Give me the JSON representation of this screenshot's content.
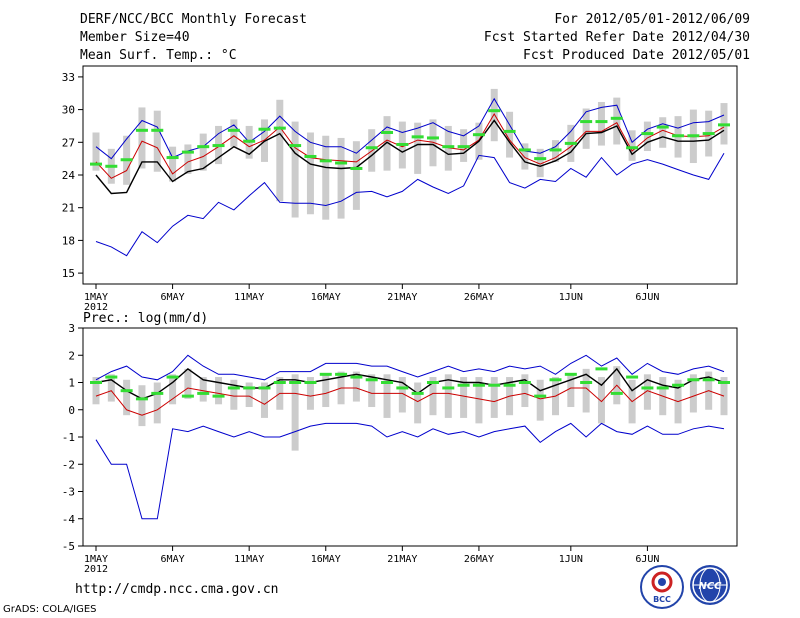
{
  "header": {
    "title": "DERF/NCC/BCC Monthly Forecast",
    "member_size": "Member Size=40",
    "variable": "Mean Surf. Temp.: °C",
    "period": "For 2012/05/01-2012/06/09",
    "started": "Fcst Started Refer Date 2012/04/30",
    "produced": "Fcst Produced Date 2012/05/01"
  },
  "footer": {
    "url": "http://cmdp.ncc.cma.gov.cn",
    "credit": "GrADS: COLA/IGES",
    "logo_bcc": "BCC",
    "logo_ncc": "NCC"
  },
  "colors": {
    "mean": "#000000",
    "median": "#cc0000",
    "envelope": "#0000cc",
    "box": "#cccccc",
    "mode": "#33dd33"
  },
  "chart_data": [
    {
      "type": "line",
      "title": "Mean Surf. Temp.: °C",
      "x_tick_labels": [
        "1MAY",
        "6MAY",
        "11MAY",
        "16MAY",
        "21MAY",
        "26MAY",
        "1JUN",
        "6JUN"
      ],
      "x_tick_days": [
        1,
        6,
        11,
        16,
        21,
        26,
        32,
        37
      ],
      "year_label": "2012",
      "ylim": [
        14,
        34
      ],
      "y_ticks": [
        15,
        18,
        21,
        24,
        27,
        30,
        33
      ],
      "series": [
        {
          "name": "max",
          "values": [
            26.6,
            25.5,
            27.3,
            29.0,
            28.4,
            25.6,
            26.2,
            26.6,
            27.8,
            28.6,
            27.0,
            28.0,
            29.4,
            28.0,
            27.0,
            26.6,
            26.6,
            26.0,
            27.2,
            28.4,
            27.9,
            28.3,
            28.8,
            28.0,
            27.6,
            28.5,
            31.0,
            28.6,
            26.2,
            26.0,
            26.6,
            28.0,
            29.8,
            30.2,
            30.4,
            27.0,
            28.2,
            28.7,
            28.3,
            28.8,
            28.9,
            29.5
          ]
        },
        {
          "name": "median",
          "values": [
            25.2,
            23.7,
            24.4,
            27.1,
            26.5,
            24.1,
            25.2,
            25.7,
            26.6,
            27.6,
            26.6,
            27.2,
            28.4,
            26.5,
            25.6,
            25.4,
            25.3,
            25.2,
            26.2,
            27.2,
            26.6,
            27.2,
            27.0,
            26.5,
            26.3,
            27.2,
            29.6,
            27.2,
            25.6,
            25.0,
            25.6,
            26.6,
            28.0,
            28.0,
            28.8,
            26.2,
            27.4,
            28.1,
            27.6,
            27.5,
            27.6,
            28.4
          ]
        },
        {
          "name": "mean",
          "values": [
            24.0,
            22.3,
            22.4,
            25.2,
            25.2,
            23.4,
            24.3,
            24.6,
            25.6,
            26.6,
            25.9,
            27.1,
            27.8,
            26.0,
            25.0,
            24.7,
            24.6,
            24.7,
            25.8,
            27.0,
            26.1,
            26.8,
            26.8,
            25.9,
            26.0,
            27.1,
            29.0,
            27.0,
            25.2,
            24.8,
            25.3,
            26.1,
            27.8,
            27.9,
            28.5,
            25.9,
            27.0,
            27.5,
            27.1,
            27.1,
            27.2,
            28.1
          ]
        },
        {
          "name": "min",
          "values": [
            17.9,
            17.4,
            16.6,
            18.8,
            17.8,
            19.3,
            20.3,
            20.0,
            21.5,
            20.8,
            22.1,
            23.3,
            21.5,
            21.4,
            21.4,
            21.2,
            21.6,
            22.4,
            22.5,
            22.0,
            22.5,
            23.6,
            22.9,
            22.3,
            23.0,
            25.8,
            25.6,
            23.3,
            22.8,
            23.6,
            23.4,
            24.6,
            23.8,
            25.6,
            24.0,
            25.0,
            25.4,
            25.0,
            24.5,
            24.0,
            23.6,
            26.0
          ]
        },
        {
          "name": "box_high",
          "values": [
            27.9,
            26.4,
            27.6,
            30.2,
            29.9,
            26.6,
            26.8,
            27.8,
            28.5,
            29.1,
            28.5,
            29.1,
            30.9,
            28.9,
            27.9,
            27.6,
            27.4,
            27.1,
            28.2,
            29.4,
            28.9,
            28.8,
            29.1,
            28.5,
            28.2,
            28.8,
            31.9,
            29.8,
            26.9,
            26.4,
            27.2,
            28.6,
            30.1,
            30.7,
            31.1,
            28.1,
            28.9,
            29.3,
            29.4,
            30.0,
            29.9,
            30.6
          ]
        },
        {
          "name": "box_low",
          "values": [
            24.4,
            23.2,
            23.1,
            24.6,
            24.3,
            23.4,
            24.1,
            24.4,
            25.0,
            26.6,
            25.5,
            25.2,
            21.6,
            20.1,
            20.4,
            19.9,
            20.0,
            20.8,
            24.3,
            24.4,
            24.6,
            24.1,
            24.8,
            24.4,
            25.2,
            25.4,
            27.1,
            25.6,
            24.5,
            23.8,
            25.2,
            25.2,
            26.4,
            26.7,
            26.8,
            25.3,
            26.2,
            26.5,
            25.6,
            25.1,
            25.7,
            26.8
          ]
        },
        {
          "name": "mode",
          "values": [
            25.0,
            24.8,
            25.4,
            28.1,
            28.1,
            25.6,
            26.1,
            26.6,
            26.7,
            28.1,
            27.1,
            28.2,
            28.3,
            26.7,
            25.7,
            25.3,
            25.1,
            24.6,
            26.5,
            27.9,
            26.8,
            27.5,
            27.4,
            26.6,
            26.6,
            27.7,
            29.9,
            28.0,
            26.3,
            25.5,
            26.3,
            26.9,
            28.9,
            28.9,
            29.2,
            26.5,
            27.8,
            28.4,
            27.6,
            27.6,
            27.8,
            28.6
          ]
        }
      ]
    },
    {
      "type": "line",
      "title": "Prec.: log(mm/d)",
      "x_tick_labels": [
        "1MAY",
        "6MAY",
        "11MAY",
        "16MAY",
        "21MAY",
        "26MAY",
        "1JUN",
        "6JUN"
      ],
      "x_tick_days": [
        1,
        6,
        11,
        16,
        21,
        26,
        32,
        37
      ],
      "year_label": "2012",
      "ylim": [
        -5,
        3
      ],
      "y_ticks": [
        -5,
        -4,
        -3,
        -2,
        -1,
        0,
        1,
        2,
        3
      ],
      "series": [
        {
          "name": "max",
          "values": [
            1.1,
            1.4,
            1.6,
            1.2,
            1.1,
            1.4,
            2.0,
            1.6,
            1.3,
            1.3,
            1.2,
            1.1,
            1.4,
            1.4,
            1.4,
            1.7,
            1.7,
            1.7,
            1.6,
            1.6,
            1.4,
            1.2,
            1.4,
            1.6,
            1.4,
            1.5,
            1.4,
            1.6,
            1.5,
            1.6,
            1.3,
            1.7,
            2.0,
            1.6,
            1.9,
            1.3,
            1.7,
            1.4,
            1.3,
            1.5,
            1.6,
            1.4
          ]
        },
        {
          "name": "median",
          "values": [
            0.5,
            0.7,
            0.0,
            -0.2,
            0.0,
            0.4,
            0.8,
            0.7,
            0.6,
            0.5,
            0.5,
            0.2,
            0.6,
            0.6,
            0.5,
            0.6,
            0.8,
            0.8,
            0.6,
            0.6,
            0.6,
            0.3,
            0.6,
            0.6,
            0.5,
            0.4,
            0.3,
            0.5,
            0.6,
            0.4,
            0.5,
            0.8,
            0.8,
            0.3,
            0.9,
            0.3,
            0.7,
            0.5,
            0.3,
            0.5,
            0.7,
            0.5
          ]
        },
        {
          "name": "mean",
          "values": [
            1.0,
            1.1,
            0.7,
            0.4,
            0.6,
            1.0,
            1.5,
            1.1,
            1.0,
            0.9,
            0.8,
            0.8,
            1.1,
            1.1,
            1.0,
            1.1,
            1.2,
            1.3,
            1.2,
            1.1,
            1.0,
            0.6,
            1.0,
            1.1,
            1.0,
            1.0,
            0.9,
            1.0,
            1.1,
            0.7,
            0.9,
            1.1,
            1.3,
            0.9,
            1.5,
            0.7,
            1.1,
            0.9,
            0.8,
            1.1,
            1.2,
            1.0
          ]
        },
        {
          "name": "min",
          "values": [
            -1.1,
            -2.0,
            -2.0,
            -4.0,
            -4.0,
            -0.7,
            -0.8,
            -0.6,
            -0.8,
            -1.0,
            -0.8,
            -1.0,
            -1.0,
            -0.8,
            -0.6,
            -0.5,
            -0.5,
            -0.5,
            -0.6,
            -1.0,
            -0.8,
            -1.0,
            -0.7,
            -0.9,
            -0.8,
            -1.0,
            -0.8,
            -0.7,
            -0.6,
            -1.2,
            -0.8,
            -0.5,
            -1.0,
            -0.5,
            -0.8,
            -0.9,
            -0.6,
            -0.9,
            -0.9,
            -0.7,
            -0.6,
            -0.7
          ]
        },
        {
          "name": "box_high",
          "values": [
            1.2,
            1.3,
            1.1,
            0.9,
            1.0,
            1.3,
            1.5,
            1.2,
            1.2,
            1.1,
            1.0,
            1.0,
            1.2,
            1.3,
            1.2,
            1.3,
            1.4,
            1.4,
            1.3,
            1.3,
            1.2,
            1.0,
            1.2,
            1.3,
            1.2,
            1.2,
            1.2,
            1.2,
            1.3,
            1.1,
            1.2,
            1.3,
            1.5,
            1.2,
            1.6,
            1.1,
            1.3,
            1.2,
            1.1,
            1.3,
            1.4,
            1.2
          ]
        },
        {
          "name": "box_low",
          "values": [
            0.2,
            0.3,
            -0.2,
            -0.6,
            -0.5,
            0.2,
            0.4,
            0.3,
            0.2,
            0.0,
            0.1,
            -0.3,
            0.0,
            -1.5,
            0.0,
            0.1,
            0.2,
            0.3,
            0.1,
            -0.3,
            -0.1,
            -0.5,
            -0.2,
            -0.3,
            -0.3,
            -0.5,
            -0.3,
            -0.2,
            0.1,
            -0.4,
            -0.2,
            0.1,
            -0.1,
            -0.5,
            0.2,
            -0.5,
            0.0,
            -0.2,
            -0.5,
            -0.1,
            0.0,
            -0.2
          ]
        },
        {
          "name": "mode",
          "values": [
            1.0,
            1.2,
            0.7,
            0.4,
            0.6,
            1.2,
            0.5,
            0.6,
            0.5,
            0.8,
            0.8,
            0.8,
            1.0,
            1.0,
            1.0,
            1.3,
            1.3,
            1.2,
            1.1,
            1.0,
            0.8,
            0.6,
            1.0,
            0.8,
            0.9,
            0.9,
            0.9,
            0.9,
            1.0,
            0.5,
            1.1,
            1.3,
            1.0,
            1.5,
            0.6,
            1.2,
            0.8,
            0.8,
            0.9,
            1.1,
            1.1,
            1.0
          ]
        }
      ]
    }
  ]
}
